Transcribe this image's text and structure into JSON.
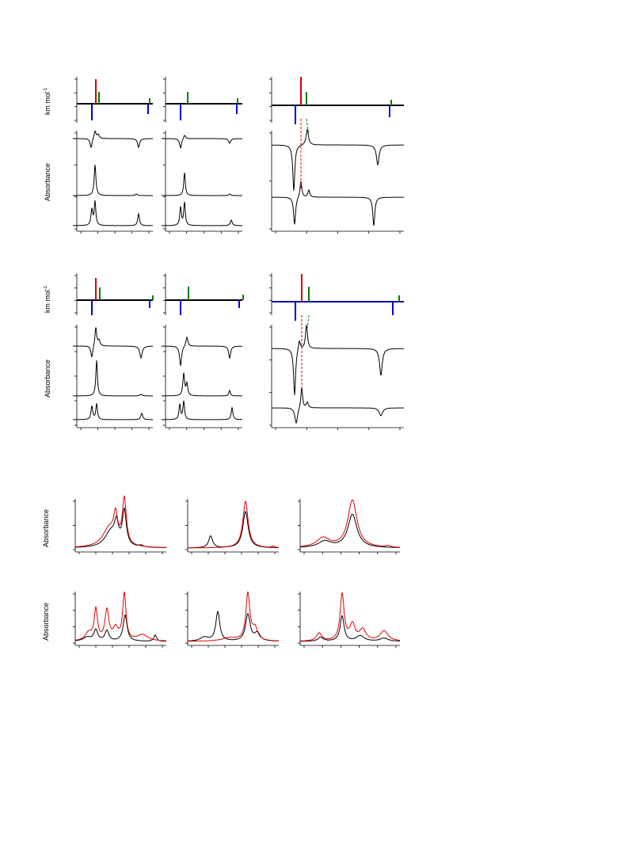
{
  "figure": {
    "groups": [
      {
        "bar_label": "km mol",
        "bar_label_sup": "-1",
        "spectra_label": "Absorbance"
      },
      {
        "bar_label": "km mol",
        "bar_label_sup": "-1",
        "spectra_label": "Absorbance"
      }
    ],
    "overlay_rows": [
      {
        "label": "Absorbance"
      },
      {
        "label": "Absorbance"
      }
    ]
  }
}
